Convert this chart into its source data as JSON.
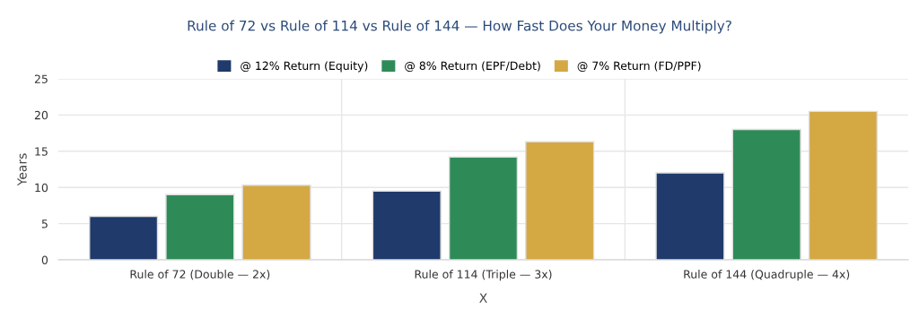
{
  "chart_data": {
    "type": "bar",
    "title": "Rule of 72 vs Rule of 114 vs Rule of 144 — How Fast Does Your Money Multiply?",
    "xlabel": "X",
    "ylabel": "Years",
    "categories": [
      "Rule of 72 (Double — 2x)",
      "Rule of 114 (Triple — 3x)",
      "Rule of 144 (Quadruple — 4x)"
    ],
    "series": [
      {
        "name": "@ 12% Return (Equity)",
        "color": "#1f3a6b",
        "values": [
          6,
          9.5,
          12
        ]
      },
      {
        "name": "@ 8% Return (EPF/Debt)",
        "color": "#2e8b57",
        "values": [
          9,
          14.2,
          18
        ]
      },
      {
        "name": "@ 7% Return (FD/PPF)",
        "color": "#d4a843",
        "values": [
          10.3,
          16.3,
          20.5
        ]
      }
    ],
    "ylim": [
      0,
      25
    ],
    "yticks": [
      0,
      5,
      10,
      15,
      20,
      25
    ],
    "grid": true,
    "legend": "top"
  }
}
